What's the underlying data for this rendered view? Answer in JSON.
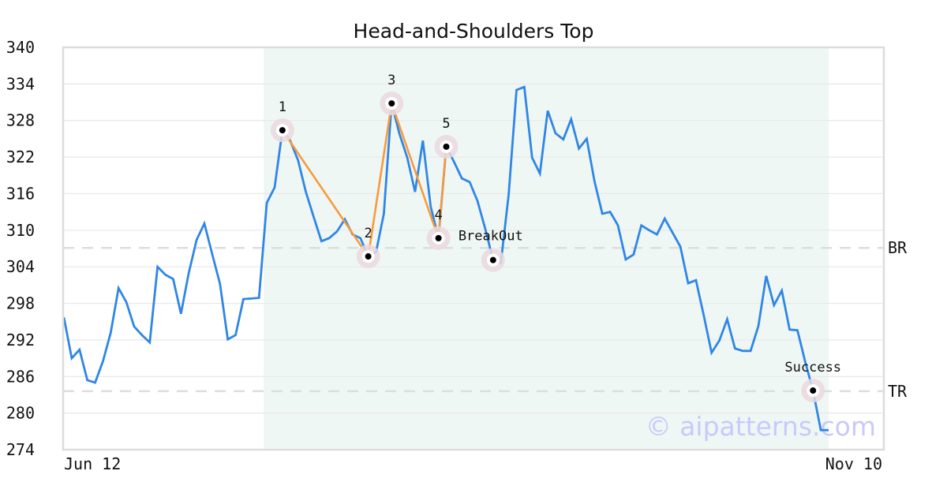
{
  "chart_data": {
    "type": "line",
    "title": "Head-and-Shoulders Top",
    "xlabel": "",
    "ylabel": "",
    "x_tick_labels": [
      "Jun 12",
      "Nov 10"
    ],
    "ylim": [
      274,
      340
    ],
    "yticks": [
      274,
      280,
      286,
      292,
      298,
      304,
      310,
      316,
      322,
      328,
      334,
      340
    ],
    "grid": true,
    "colors": {
      "price": "#2f86e6",
      "pattern": "#f79a3e",
      "shade": "#eff7f4",
      "marker_halo": "#ead9de",
      "ref_line": "#dddddd",
      "watermark": "#c9c9fb"
    },
    "series": [
      {
        "values": [
          295.7,
          289.0,
          290.4,
          285.4,
          285.0,
          288.5,
          293.2,
          300.5,
          298.2,
          294.2,
          292.8,
          291.6,
          304.0,
          302.7,
          302.0,
          296.3,
          303.0,
          308.4,
          311.1,
          306.1,
          301.2,
          292.1,
          292.8,
          298.7,
          298.8,
          298.9,
          314.5,
          317.0,
          326.4,
          324.7,
          321.5,
          316.3,
          312.2,
          308.2,
          308.7,
          309.8,
          311.8,
          309.3,
          308.7,
          305.7,
          306.4,
          312.7,
          330.8,
          325.8,
          321.9,
          316.3,
          324.7,
          313.9,
          308.7,
          323.7,
          321.2,
          318.5,
          317.9,
          314.8,
          310.2,
          305.1,
          304.7,
          315.9,
          333.0,
          333.5,
          321.9,
          319.3,
          329.6,
          325.9,
          324.9,
          328.2,
          323.4,
          325.0,
          318.0,
          312.7,
          313.0,
          310.8,
          305.2,
          306.0,
          310.8,
          310.0,
          309.3,
          311.9,
          309.6,
          307.3,
          301.3,
          301.8,
          296.0,
          289.9,
          291.9,
          295.4,
          290.6,
          290.2,
          290.2,
          294.3,
          302.5,
          297.7,
          300.1,
          293.7,
          293.6,
          288.4,
          283.7,
          277.2,
          277.2
        ]
      }
    ],
    "pattern_region": {
      "start_index": 26,
      "end_index": 98
    },
    "pattern_points": [
      {
        "label": "1",
        "index": 28,
        "value": 326.4
      },
      {
        "label": "2",
        "index": 39,
        "value": 305.7
      },
      {
        "label": "3",
        "index": 42,
        "value": 330.8
      },
      {
        "label": "4",
        "index": 48,
        "value": 308.7
      },
      {
        "label": "5",
        "index": 49,
        "value": 323.7
      }
    ],
    "events": [
      {
        "label": "BreakOut",
        "index": 55,
        "value": 305.1
      },
      {
        "label": "Success",
        "index": 96,
        "value": 283.7
      }
    ],
    "reference_lines": [
      {
        "label": "BR",
        "value": 307.1
      },
      {
        "label": "TR",
        "value": 283.6
      }
    ],
    "watermark": "© aipatterns.com"
  }
}
